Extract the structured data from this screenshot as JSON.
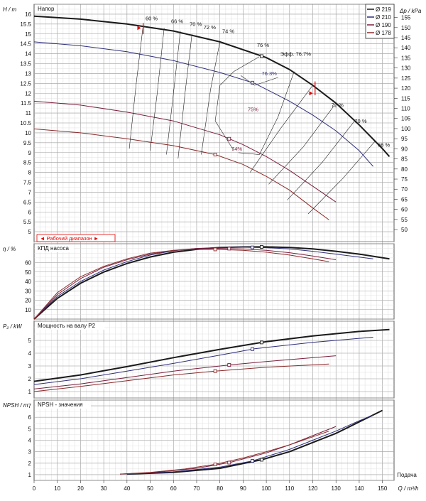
{
  "colors": {
    "d219": "#1a1a1a",
    "d210": "#2e2e7a",
    "d190": "#7a1f3d",
    "d178": "#8b2a2a",
    "grid": "#b8b8b8",
    "iso": "#222222",
    "range": "#e60000"
  },
  "x_axis": {
    "label": "Q / m³/h",
    "corner_label": "Подача",
    "ticks": [
      "0",
      "10",
      "20",
      "30",
      "40",
      "50",
      "60",
      "70",
      "80",
      "90",
      "100",
      "110",
      "120",
      "130",
      "140",
      "150"
    ]
  },
  "legend": [
    {
      "label": "Ø 219",
      "color_key": "d219"
    },
    {
      "label": "Ø 210",
      "color_key": "d210"
    },
    {
      "label": "Ø 190",
      "color_key": "d190"
    },
    {
      "label": "Ø 178",
      "color_key": "d178"
    }
  ],
  "working_range_label": "◄ Рабочий диапазон ►",
  "chart_data": [
    {
      "type": "line",
      "panel": "head",
      "title": "Напор",
      "ylabel": "H / m",
      "ylabel_right": "Δp / kPa",
      "ylim": [
        4.5,
        16.5
      ],
      "xlim": [
        0,
        155
      ],
      "yticks": [
        "5",
        "5.5",
        "6",
        "6.5",
        "7",
        "7.5",
        "8",
        "8.5",
        "9",
        "9.5",
        "10",
        "10.5",
        "11",
        "11.5",
        "12",
        "12.5",
        "13",
        "13.5",
        "14",
        "14.5",
        "15",
        "15.5",
        "16"
      ],
      "yticks_right": [
        "50",
        "55",
        "60",
        "65",
        "70",
        "75",
        "80",
        "85",
        "90",
        "95",
        "100",
        "105",
        "110",
        "115",
        "120",
        "125",
        "130",
        "135",
        "140",
        "145",
        "150",
        "155"
      ],
      "series": [
        {
          "name": "Ø 219",
          "x": [
            0,
            20,
            40,
            60,
            80,
            100,
            110,
            120,
            130,
            140,
            150,
            153
          ],
          "y": [
            15.9,
            15.75,
            15.5,
            15.15,
            14.6,
            13.8,
            13.2,
            12.4,
            11.5,
            10.4,
            9.2,
            8.8
          ]
        },
        {
          "name": "Ø 210",
          "x": [
            0,
            20,
            40,
            60,
            80,
            95,
            110,
            120,
            130,
            140,
            146
          ],
          "y": [
            14.6,
            14.4,
            14.1,
            13.65,
            13.05,
            12.5,
            11.6,
            10.9,
            10.1,
            9.1,
            8.3
          ]
        },
        {
          "name": "Ø 190",
          "x": [
            0,
            20,
            40,
            60,
            80,
            90,
            100,
            110,
            120,
            130
          ],
          "y": [
            11.6,
            11.4,
            11.05,
            10.6,
            9.9,
            9.4,
            8.8,
            8.1,
            7.3,
            6.5
          ]
        },
        {
          "name": "Ø 178",
          "x": [
            0,
            20,
            40,
            60,
            78,
            90,
            100,
            110,
            120,
            127
          ],
          "y": [
            10.2,
            10.0,
            9.7,
            9.35,
            8.9,
            8.4,
            7.8,
            7.1,
            6.2,
            5.6
          ]
        }
      ],
      "efficiency_labels": [
        "60 %",
        "66 %",
        "70 %",
        "72 %",
        "74 %",
        "76 %",
        "Эфф.  76.7%",
        "76.3%",
        "75%",
        "74%",
        "72 %",
        "70 %",
        "66 %"
      ]
    },
    {
      "type": "line",
      "panel": "efficiency",
      "title": "КПД насоса",
      "ylabel": "η / %",
      "ylim": [
        0,
        80
      ],
      "yticks": [
        "10",
        "20",
        "30",
        "40",
        "50",
        "60"
      ],
      "series": [
        {
          "name": "Ø 219",
          "x": [
            0,
            10,
            20,
            30,
            40,
            50,
            60,
            70,
            80,
            90,
            100,
            110,
            120,
            130,
            140,
            153
          ],
          "y": [
            0,
            22,
            38,
            50,
            59,
            66,
            71,
            74,
            76,
            76.6,
            76.7,
            76,
            74.5,
            72,
            69,
            64
          ]
        },
        {
          "name": "Ø 210",
          "x": [
            0,
            10,
            20,
            30,
            40,
            50,
            60,
            70,
            80,
            90,
            100,
            110,
            120,
            130,
            146
          ],
          "y": [
            0,
            24,
            40,
            52,
            61,
            68,
            72.5,
            75,
            76,
            76.3,
            75.8,
            74.5,
            72,
            69,
            64
          ]
        },
        {
          "name": "Ø 190",
          "x": [
            0,
            10,
            20,
            30,
            40,
            50,
            60,
            70,
            80,
            90,
            100,
            110,
            120,
            130
          ],
          "y": [
            0,
            26,
            43,
            55,
            63,
            69,
            73,
            75,
            75,
            74.5,
            73,
            70.5,
            67,
            63
          ]
        },
        {
          "name": "Ø 178",
          "x": [
            0,
            10,
            20,
            30,
            40,
            50,
            60,
            70,
            78,
            90,
            100,
            110,
            120,
            127
          ],
          "y": [
            0,
            28,
            45,
            56,
            64,
            70,
            73,
            74,
            74,
            73,
            71,
            68,
            64,
            61
          ]
        }
      ]
    },
    {
      "type": "line",
      "panel": "power",
      "title": "Мощность на валу P2",
      "ylabel": "P₂ / kW",
      "ylim": [
        0.5,
        6.5
      ],
      "yticks": [
        "1",
        "2",
        "3",
        "4",
        "5"
      ],
      "series": [
        {
          "name": "Ø 219",
          "x": [
            0,
            20,
            40,
            60,
            80,
            100,
            120,
            140,
            153
          ],
          "y": [
            1.8,
            2.3,
            2.95,
            3.65,
            4.3,
            4.9,
            5.35,
            5.7,
            5.85
          ]
        },
        {
          "name": "Ø 210",
          "x": [
            0,
            20,
            40,
            60,
            80,
            95,
            120,
            146
          ],
          "y": [
            1.55,
            2.0,
            2.6,
            3.2,
            3.85,
            4.35,
            4.85,
            5.25
          ]
        },
        {
          "name": "Ø 190",
          "x": [
            0,
            20,
            40,
            60,
            85,
            100,
            130
          ],
          "y": [
            1.2,
            1.6,
            2.1,
            2.6,
            3.1,
            3.35,
            3.8
          ]
        },
        {
          "name": "Ø 178",
          "x": [
            0,
            20,
            40,
            60,
            78,
            100,
            127
          ],
          "y": [
            1.0,
            1.4,
            1.85,
            2.3,
            2.6,
            2.9,
            3.15
          ]
        }
      ]
    },
    {
      "type": "line",
      "panel": "npsh",
      "title": "NPSH - значения",
      "ylabel": "NPSH / m",
      "ylim": [
        0.5,
        7.5
      ],
      "yticks": [
        "1",
        "2",
        "3",
        "4",
        "5",
        "6",
        "7"
      ],
      "series": [
        {
          "name": "Ø 219",
          "x": [
            40,
            60,
            80,
            98,
            110,
            120,
            130,
            140,
            150
          ],
          "y": [
            1.05,
            1.2,
            1.55,
            2.3,
            3.0,
            3.8,
            4.6,
            5.6,
            6.6
          ]
        },
        {
          "name": "Ø 210",
          "x": [
            40,
            60,
            80,
            94,
            110,
            120,
            130,
            140,
            146
          ],
          "y": [
            1.05,
            1.25,
            1.65,
            2.2,
            3.2,
            4.0,
            4.8,
            5.7,
            6.2
          ]
        },
        {
          "name": "Ø 190",
          "x": [
            37,
            50,
            70,
            84,
            100,
            110,
            120,
            130
          ],
          "y": [
            1.05,
            1.15,
            1.55,
            2.05,
            2.9,
            3.6,
            4.4,
            5.2
          ]
        },
        {
          "name": "Ø 178",
          "x": [
            37,
            50,
            65,
            78,
            90,
            100,
            110,
            120,
            127
          ],
          "y": [
            1.05,
            1.2,
            1.5,
            1.9,
            2.45,
            3.0,
            3.6,
            4.3,
            4.8
          ]
        }
      ]
    }
  ]
}
